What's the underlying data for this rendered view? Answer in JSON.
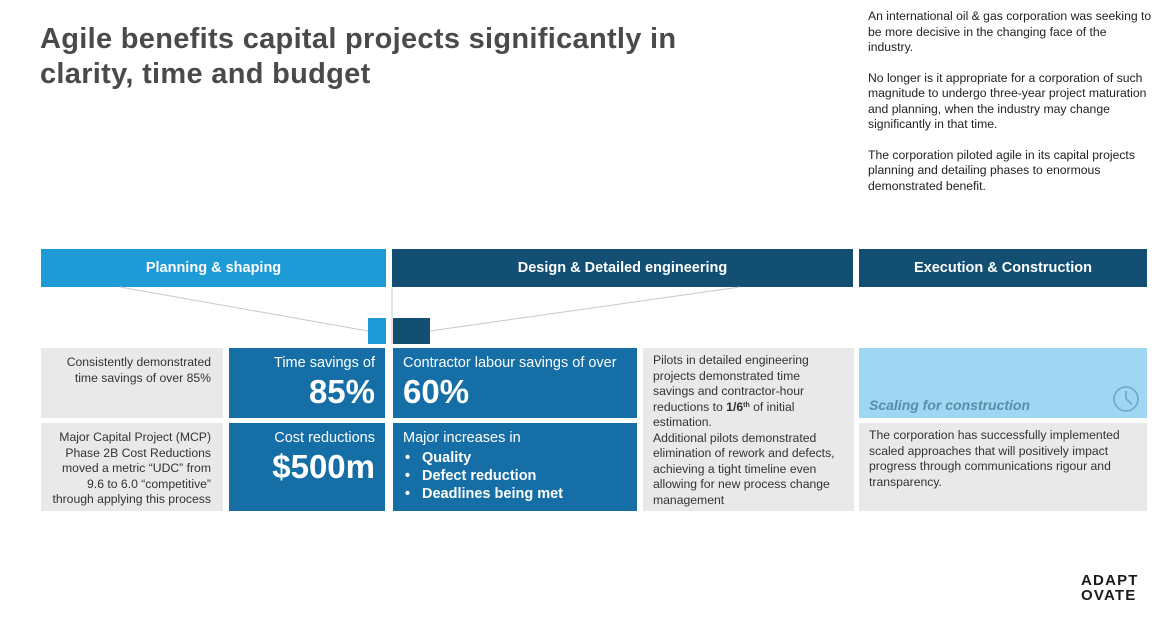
{
  "title": {
    "line1": "Agile benefits capital projects significantly in",
    "line2": "clarity, time and budget"
  },
  "intro": {
    "p1": "An international oil & gas corporation was seeking to be more decisive in the changing face of the industry.",
    "p2": "No longer is it appropriate for a corporation of such magnitude to undergo three-year project maturation and planning, when the industry may change significantly in that time.",
    "p3": "The corporation piloted agile in its capital projects planning and detailing phases to enormous demonstrated benefit."
  },
  "phases": [
    {
      "label": "Planning & shaping"
    },
    {
      "label": "Design & Detailed engineering"
    },
    {
      "label": "Execution & Construction"
    }
  ],
  "planning": {
    "note1": "Consistently demonstrated time savings of over 85%",
    "note2": "Major Capital Project (MCP) Phase 2B Cost Reductions moved a metric “UDC” from 9.6 to 6.0 “competitive” through applying this process",
    "time_label": "Time savings of",
    "time_value": "85%",
    "cost_label": "Cost reductions",
    "cost_value": "$500m"
  },
  "design": {
    "labour_label": "Contractor labour savings of over",
    "labour_value": "60%",
    "increases_label": "Major increases in",
    "increases": [
      "Quality",
      "Defect reduction",
      "Deadlines being met"
    ],
    "pilot_text_a": "Pilots in detailed engineering projects demonstrated time savings and contractor-hour reductions to ",
    "pilot_fraction": "1/6",
    "pilot_sup": "th",
    "pilot_text_b": " of initial estimation.",
    "pilot_text_c": "Additional pilots demonstrated elimination of rework and defects, achieving a tight timeline even allowing for new process change management"
  },
  "execution": {
    "scale_label": "Scaling for construction",
    "scale_icon": "clock-icon",
    "description": "The corporation has successfully implemented scaled approaches that will positively impact progress through communications rigour and transparency."
  },
  "logo": {
    "line1": "ADAPT",
    "line2": "OVATE"
  },
  "colors": {
    "light_blue": "#1e9ad6",
    "dark_blue": "#124f72",
    "metric_blue": "#156fa6",
    "pale_blue": "#9fd7f2",
    "grey": "#e9e9e9"
  }
}
